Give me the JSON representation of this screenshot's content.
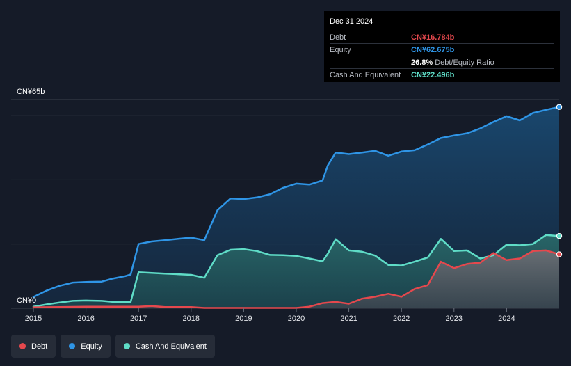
{
  "tooltip": {
    "date": "Dec 31 2024",
    "rows": [
      {
        "label": "Debt",
        "value": "CN¥16.784b",
        "color": "#e5484d"
      },
      {
        "label": "Equity",
        "value": "CN¥62.675b",
        "color": "#2f95e6"
      },
      {
        "label": "",
        "value": "26.8%",
        "extra": "Debt/Equity Ratio",
        "color": "#ffffff"
      },
      {
        "label": "Cash And Equivalent",
        "value": "CN¥22.496b",
        "color": "#5fdcc7"
      }
    ]
  },
  "legend": [
    {
      "label": "Debt",
      "color": "#e5484d"
    },
    {
      "label": "Equity",
      "color": "#2f95e6"
    },
    {
      "label": "Cash And Equivalent",
      "color": "#5fdcc7"
    }
  ],
  "chart_data": {
    "type": "area",
    "y_top_label": "CN¥65b",
    "y_bottom_label": "CN¥0",
    "ylim": [
      0,
      65
    ],
    "xlim": [
      2015.0,
      2025.0
    ],
    "x_ticks": [
      2015,
      2016,
      2017,
      2018,
      2019,
      2020,
      2021,
      2022,
      2023,
      2024
    ],
    "x_tick_labels": [
      "2015",
      "2016",
      "2017",
      "2018",
      "2019",
      "2020",
      "2021",
      "2022",
      "2023",
      "2024"
    ],
    "grid_values": [
      20,
      40,
      60
    ],
    "series": [
      {
        "name": "Equity",
        "color": "#2f95e6",
        "x": [
          2015.0,
          2015.25,
          2015.5,
          2015.75,
          2016.0,
          2016.3,
          2016.5,
          2016.75,
          2016.85,
          2017.0,
          2017.25,
          2017.5,
          2017.75,
          2018.0,
          2018.25,
          2018.5,
          2018.75,
          2019.0,
          2019.25,
          2019.5,
          2019.75,
          2020.0,
          2020.25,
          2020.5,
          2020.6,
          2020.75,
          2021.0,
          2021.25,
          2021.5,
          2021.75,
          2022.0,
          2022.25,
          2022.5,
          2022.75,
          2023.0,
          2023.25,
          2023.5,
          2023.75,
          2024.0,
          2024.25,
          2024.5,
          2024.75,
          2025.0
        ],
        "values": [
          3.5,
          5.5,
          7.0,
          8.0,
          8.2,
          8.3,
          9.2,
          10.0,
          10.5,
          20.0,
          20.8,
          21.2,
          21.6,
          22.0,
          21.2,
          30.5,
          34.2,
          34.0,
          34.5,
          35.5,
          37.5,
          38.8,
          38.5,
          39.8,
          44.5,
          48.5,
          48.0,
          48.5,
          49.0,
          47.5,
          48.8,
          49.2,
          51.0,
          53.0,
          53.8,
          54.5,
          56.0,
          58.0,
          59.8,
          58.5,
          60.8,
          61.8,
          62.675
        ]
      },
      {
        "name": "Cash And Equivalent",
        "color": "#5fdcc7",
        "x": [
          2015.0,
          2015.25,
          2015.5,
          2015.75,
          2016.0,
          2016.3,
          2016.5,
          2016.75,
          2016.85,
          2017.0,
          2017.25,
          2017.5,
          2017.75,
          2018.0,
          2018.25,
          2018.5,
          2018.75,
          2019.0,
          2019.25,
          2019.5,
          2019.75,
          2020.0,
          2020.25,
          2020.5,
          2020.6,
          2020.75,
          2021.0,
          2021.25,
          2021.5,
          2021.75,
          2022.0,
          2022.25,
          2022.5,
          2022.75,
          2023.0,
          2023.25,
          2023.5,
          2023.75,
          2024.0,
          2024.25,
          2024.5,
          2024.75,
          2025.0
        ],
        "values": [
          0.5,
          1.2,
          1.8,
          2.3,
          2.4,
          2.3,
          2.0,
          1.9,
          2.0,
          11.2,
          11.0,
          10.8,
          10.6,
          10.4,
          9.5,
          16.5,
          18.2,
          18.4,
          17.8,
          16.6,
          16.5,
          16.3,
          15.5,
          14.6,
          17.0,
          21.5,
          18.0,
          17.6,
          16.4,
          13.5,
          13.3,
          14.5,
          15.8,
          21.6,
          17.8,
          18.0,
          15.5,
          16.5,
          19.8,
          19.6,
          20.0,
          22.8,
          22.496
        ]
      },
      {
        "name": "Debt",
        "color": "#e5484d",
        "x": [
          2015.0,
          2015.5,
          2016.0,
          2016.5,
          2017.0,
          2017.25,
          2017.5,
          2018.0,
          2018.25,
          2018.5,
          2019.0,
          2019.5,
          2020.0,
          2020.25,
          2020.5,
          2020.75,
          2021.0,
          2021.25,
          2021.5,
          2021.75,
          2022.0,
          2022.25,
          2022.5,
          2022.75,
          2023.0,
          2023.25,
          2023.5,
          2023.75,
          2024.0,
          2024.25,
          2024.5,
          2024.75,
          2025.0
        ],
        "values": [
          0.3,
          0.4,
          0.5,
          0.5,
          0.5,
          0.7,
          0.4,
          0.4,
          0.1,
          0.1,
          0.1,
          0.1,
          0.1,
          0.5,
          1.6,
          2.0,
          1.4,
          3.0,
          3.6,
          4.5,
          3.6,
          6.0,
          7.2,
          14.5,
          12.5,
          13.8,
          14.2,
          17.2,
          15.0,
          15.5,
          17.8,
          18.0,
          16.784
        ]
      }
    ]
  }
}
